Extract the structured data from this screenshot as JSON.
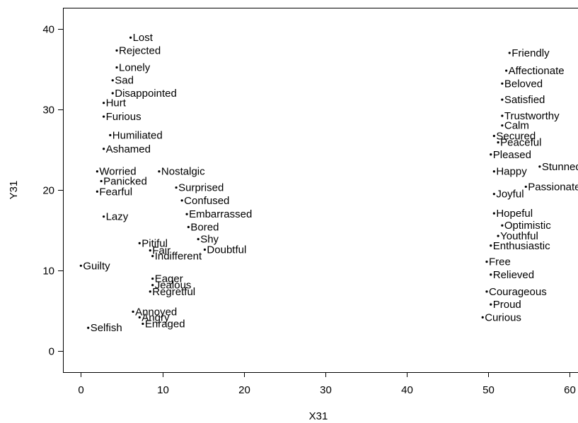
{
  "chart_data": {
    "type": "scatter",
    "xlabel": "X31",
    "ylabel": "Y31",
    "xlim": [
      -2.2,
      61
    ],
    "ylim": [
      -2.6,
      42.6
    ],
    "xticks": [
      0,
      10,
      20,
      30,
      40,
      50,
      60
    ],
    "yticks": [
      0,
      10,
      20,
      30,
      40
    ],
    "grid": false,
    "points": [
      {
        "label": "Lost",
        "x": 6.1,
        "y": 38.9
      },
      {
        "label": "Rejected",
        "x": 4.4,
        "y": 37.3
      },
      {
        "label": "Lonely",
        "x": 4.4,
        "y": 35.2
      },
      {
        "label": "Sad",
        "x": 3.9,
        "y": 33.6
      },
      {
        "label": "Disappointed",
        "x": 3.9,
        "y": 32.0
      },
      {
        "label": "Hurt",
        "x": 2.8,
        "y": 30.8
      },
      {
        "label": "Furious",
        "x": 2.8,
        "y": 29.1
      },
      {
        "label": "Humiliated",
        "x": 3.6,
        "y": 26.8
      },
      {
        "label": "Ashamed",
        "x": 2.8,
        "y": 25.1
      },
      {
        "label": "Worried",
        "x": 2.0,
        "y": 22.3
      },
      {
        "label": "Panicked",
        "x": 2.5,
        "y": 21.1
      },
      {
        "label": "Fearful",
        "x": 2.0,
        "y": 19.8
      },
      {
        "label": "Lazy",
        "x": 2.8,
        "y": 16.7
      },
      {
        "label": "Nostalgic",
        "x": 9.6,
        "y": 22.3
      },
      {
        "label": "Surprised",
        "x": 11.7,
        "y": 20.3
      },
      {
        "label": "Confused",
        "x": 12.4,
        "y": 18.7
      },
      {
        "label": "Embarrassed",
        "x": 13.0,
        "y": 17.0
      },
      {
        "label": "Bored",
        "x": 13.2,
        "y": 15.4
      },
      {
        "label": "Shy",
        "x": 14.4,
        "y": 13.9
      },
      {
        "label": "Doubtful",
        "x": 15.2,
        "y": 12.6
      },
      {
        "label": "Pitiful",
        "x": 7.2,
        "y": 13.4
      },
      {
        "label": "Fair",
        "x": 8.5,
        "y": 12.5
      },
      {
        "label": "Indifferent",
        "x": 8.8,
        "y": 11.8
      },
      {
        "label": "Guilty",
        "x": 0.0,
        "y": 10.6
      },
      {
        "label": "Eager",
        "x": 8.8,
        "y": 9.0
      },
      {
        "label": "Jealous",
        "x": 8.8,
        "y": 8.2
      },
      {
        "label": "Regretful",
        "x": 8.5,
        "y": 7.4
      },
      {
        "label": "Annoyed",
        "x": 6.4,
        "y": 4.9
      },
      {
        "label": "Angry",
        "x": 7.2,
        "y": 4.2
      },
      {
        "label": "Enraged",
        "x": 7.6,
        "y": 3.4
      },
      {
        "label": "Selfish",
        "x": 0.9,
        "y": 2.9
      },
      {
        "label": "Friendly",
        "x": 52.6,
        "y": 37.0
      },
      {
        "label": "Affectionate",
        "x": 52.2,
        "y": 34.8
      },
      {
        "label": "Beloved",
        "x": 51.7,
        "y": 33.2
      },
      {
        "label": "Satisfied",
        "x": 51.7,
        "y": 31.2
      },
      {
        "label": "Trustworthy",
        "x": 51.7,
        "y": 29.2
      },
      {
        "label": "Calm",
        "x": 51.7,
        "y": 28.0
      },
      {
        "label": "Secured",
        "x": 50.7,
        "y": 26.7
      },
      {
        "label": "Peaceful",
        "x": 51.2,
        "y": 25.9
      },
      {
        "label": "Pleased",
        "x": 50.3,
        "y": 24.4
      },
      {
        "label": "Stunned",
        "x": 56.3,
        "y": 22.9
      },
      {
        "label": "Happy",
        "x": 50.7,
        "y": 22.3
      },
      {
        "label": "Passionate",
        "x": 54.6,
        "y": 20.4
      },
      {
        "label": "Joyful",
        "x": 50.7,
        "y": 19.5
      },
      {
        "label": "Hopeful",
        "x": 50.7,
        "y": 17.1
      },
      {
        "label": "Optimistic",
        "x": 51.7,
        "y": 15.6
      },
      {
        "label": "Youthful",
        "x": 51.2,
        "y": 14.3
      },
      {
        "label": "Enthusiastic",
        "x": 50.3,
        "y": 13.1
      },
      {
        "label": "Free",
        "x": 49.8,
        "y": 11.1
      },
      {
        "label": "Relieved",
        "x": 50.3,
        "y": 9.5
      },
      {
        "label": "Courageous",
        "x": 49.8,
        "y": 7.4
      },
      {
        "label": "Proud",
        "x": 50.3,
        "y": 5.8
      },
      {
        "label": "Curious",
        "x": 49.3,
        "y": 4.2
      }
    ]
  }
}
